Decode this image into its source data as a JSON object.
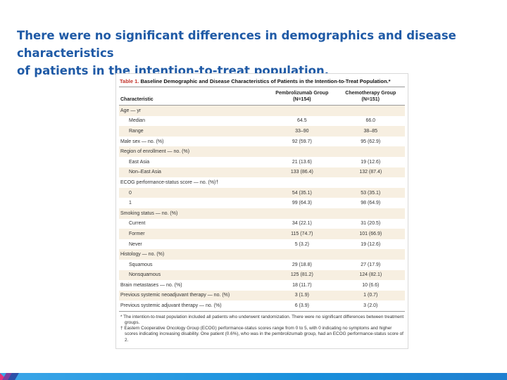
{
  "headline": {
    "line1": "There were no significant differences in demographics and disease characteristics",
    "line2": "of patients in the intention-to-treat population."
  },
  "table": {
    "caption_number": "Table 1.",
    "caption_text": " Baseline Demographic and Disease Characteristics of Patients in the Intention-to-Treat Population.*",
    "columns": {
      "characteristic": "Characteristic",
      "col2_line1": "Pembrolizumab Group",
      "col2_line2": "(N=154)",
      "col3_line1": "Chemotherapy Group",
      "col3_line2": "(N=151)"
    },
    "rows": [
      {
        "label": "Age — yr",
        "indent": false,
        "a": "",
        "b": ""
      },
      {
        "label": "Median",
        "indent": true,
        "a": "64.5",
        "b": "66.0"
      },
      {
        "label": "Range",
        "indent": true,
        "a": "33–90",
        "b": "38–85"
      },
      {
        "label": "Male sex — no. (%)",
        "indent": false,
        "a": "92 (59.7)",
        "b": "95 (62.9)"
      },
      {
        "label": "Region of enrollment — no. (%)",
        "indent": false,
        "a": "",
        "b": ""
      },
      {
        "label": "East Asia",
        "indent": true,
        "a": "21 (13.6)",
        "b": "19 (12.6)"
      },
      {
        "label": "Non–East Asia",
        "indent": true,
        "a": "133 (86.4)",
        "b": "132 (87.4)"
      },
      {
        "label": "ECOG performance-status score — no. (%)†",
        "indent": false,
        "a": "",
        "b": ""
      },
      {
        "label": "0",
        "indent": true,
        "a": "54 (35.1)",
        "b": "53 (35.1)"
      },
      {
        "label": "1",
        "indent": true,
        "a": "99 (64.3)",
        "b": "98 (64.9)"
      },
      {
        "label": "Smoking status — no. (%)",
        "indent": false,
        "a": "",
        "b": ""
      },
      {
        "label": "Current",
        "indent": true,
        "a": "34 (22.1)",
        "b": "31 (20.5)"
      },
      {
        "label": "Former",
        "indent": true,
        "a": "115 (74.7)",
        "b": "101 (66.9)"
      },
      {
        "label": "Never",
        "indent": true,
        "a": "5 (3.2)",
        "b": "19 (12.6)"
      },
      {
        "label": "Histology — no. (%)",
        "indent": false,
        "a": "",
        "b": ""
      },
      {
        "label": "Squamous",
        "indent": true,
        "a": "29 (18.8)",
        "b": "27 (17.9)"
      },
      {
        "label": "Nonsquamous",
        "indent": true,
        "a": "125 (81.2)",
        "b": "124 (82.1)"
      },
      {
        "label": "Brain metastases — no. (%)",
        "indent": false,
        "a": "18 (11.7)",
        "b": "10 (6.6)"
      },
      {
        "label": "Previous systemic neoadjuvant therapy — no. (%)",
        "indent": false,
        "a": "3 (1.9)",
        "b": "1 (0.7)"
      },
      {
        "label": "Previous systemic adjuvant therapy — no. (%)",
        "indent": false,
        "a": "6 (3.9)",
        "b": "3 (2.0)"
      }
    ],
    "footnotes": [
      "* The intention-to-treat population included all patients who underwent randomization. There were no significant differences between treatment groups.",
      "† Eastern Cooperative Oncology Group (ECOG) performance-status scores range from 0 to 5, with 0 indicating no symptoms and higher scores indicating increasing disability. One patient (0.6%), who was in the pembrolizumab group, had an ECOG performance-status score of 2."
    ]
  },
  "colors": {
    "headline": "#1f5aa6",
    "caption_number": "#c2342b",
    "row_shade": "#f7efe1",
    "bottom_bar": "#1890dc"
  }
}
